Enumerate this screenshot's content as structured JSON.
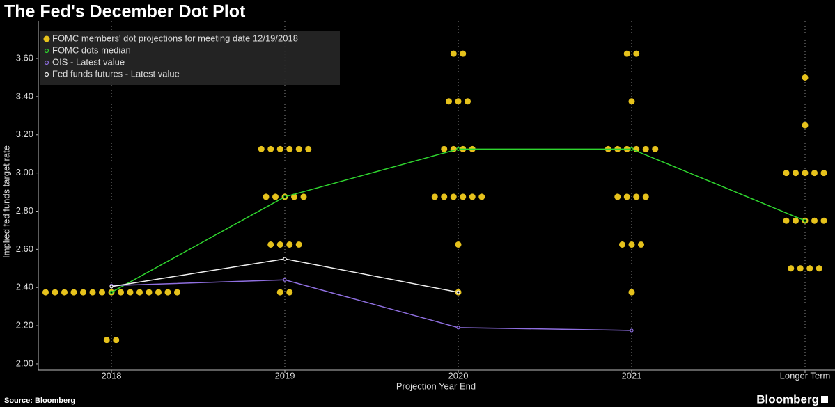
{
  "chart_data": {
    "type": "dot",
    "title": "The Fed's December Dot Plot",
    "x_label": "Projection Year End",
    "y_label": "Implied fed funds target rate",
    "source": "Source: Bloomberg",
    "brand": "Bloomberg",
    "categories": [
      "2018",
      "2019",
      "2020",
      "2021",
      "Longer Term"
    ],
    "ylim": [
      1.967,
      3.797
    ],
    "yticks": [
      {
        "value": 2.0,
        "label": "2.00"
      },
      {
        "value": 2.2,
        "label": "2.20"
      },
      {
        "value": 2.4,
        "label": "2.40"
      },
      {
        "value": 2.6,
        "label": "2.60"
      },
      {
        "value": 2.8,
        "label": "2.80"
      },
      {
        "value": 3.0,
        "label": "3.00"
      },
      {
        "value": 3.2,
        "label": "3.20"
      },
      {
        "value": 3.4,
        "label": "3.40"
      },
      {
        "value": 3.6,
        "label": "3.60"
      }
    ],
    "legend": "top-left",
    "series": [
      {
        "name": "FOMC members' dot projections for meeting date 12/19/2018",
        "color": "#e6c21c",
        "kind": "dots",
        "values": [
          [
            2.375,
            2.375,
            2.375,
            2.375,
            2.375,
            2.375,
            2.375,
            2.375,
            2.375,
            2.375,
            2.375,
            2.375,
            2.375,
            2.375,
            2.375,
            2.125,
            2.125
          ],
          [
            3.125,
            3.125,
            3.125,
            3.125,
            3.125,
            3.125,
            2.875,
            2.875,
            2.875,
            2.875,
            2.875,
            2.625,
            2.625,
            2.625,
            2.625,
            2.375,
            2.375
          ],
          [
            3.625,
            3.625,
            3.375,
            3.375,
            3.375,
            3.125,
            3.125,
            3.125,
            3.125,
            2.875,
            2.875,
            2.875,
            2.875,
            2.875,
            2.875,
            2.625,
            2.375
          ],
          [
            3.625,
            3.625,
            3.375,
            3.125,
            3.125,
            3.125,
            3.125,
            3.125,
            3.125,
            2.875,
            2.875,
            2.875,
            2.875,
            2.625,
            2.625,
            2.625,
            2.375
          ],
          [
            3.5,
            3.25,
            3.0,
            3.0,
            3.0,
            3.0,
            3.0,
            2.75,
            2.75,
            2.75,
            2.75,
            2.75,
            2.5,
            2.5,
            2.5,
            2.5
          ]
        ]
      },
      {
        "name": "FOMC dots median",
        "color": "#2fd62f",
        "kind": "line",
        "values": [
          2.375,
          2.875,
          3.125,
          3.125,
          2.75
        ]
      },
      {
        "name": "OIS - Latest value",
        "color": "#8f6fe0",
        "kind": "line",
        "values": [
          2.41,
          2.44,
          2.19,
          2.175,
          null
        ]
      },
      {
        "name": "Fed funds futures - Latest value",
        "color": "#f2f2f2",
        "kind": "line",
        "values": [
          2.405,
          2.55,
          2.375,
          null,
          null
        ]
      }
    ]
  }
}
